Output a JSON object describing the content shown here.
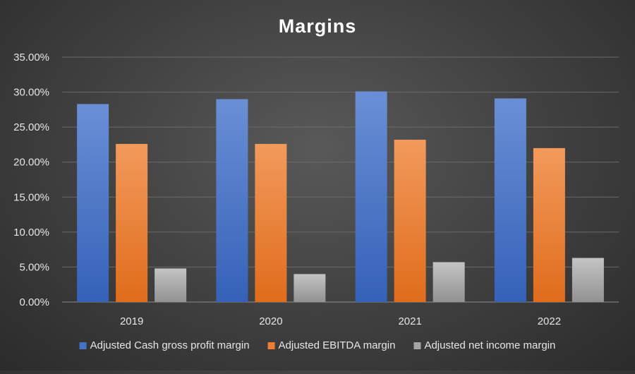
{
  "chart_data": {
    "type": "bar",
    "title": "Margins",
    "categories": [
      "2019",
      "2020",
      "2021",
      "2022"
    ],
    "series": [
      {
        "name": "Adjusted Cash gross profit margin",
        "values": [
          28.3,
          29.0,
          30.1,
          29.1
        ],
        "color": "#4472C4"
      },
      {
        "name": "Adjusted EBITDA margin",
        "values": [
          22.6,
          22.6,
          23.2,
          22.0
        ],
        "color": "#ED7D31"
      },
      {
        "name": "Adjusted net income margin",
        "values": [
          4.8,
          4.0,
          5.7,
          6.3
        ],
        "color": "#A5A5A5"
      }
    ],
    "y_ticks": [
      "0.00%",
      "5.00%",
      "10.00%",
      "15.00%",
      "20.00%",
      "25.00%",
      "30.00%",
      "35.00%"
    ],
    "ylim": [
      0,
      35
    ],
    "grid": true,
    "legend_position": "bottom"
  }
}
